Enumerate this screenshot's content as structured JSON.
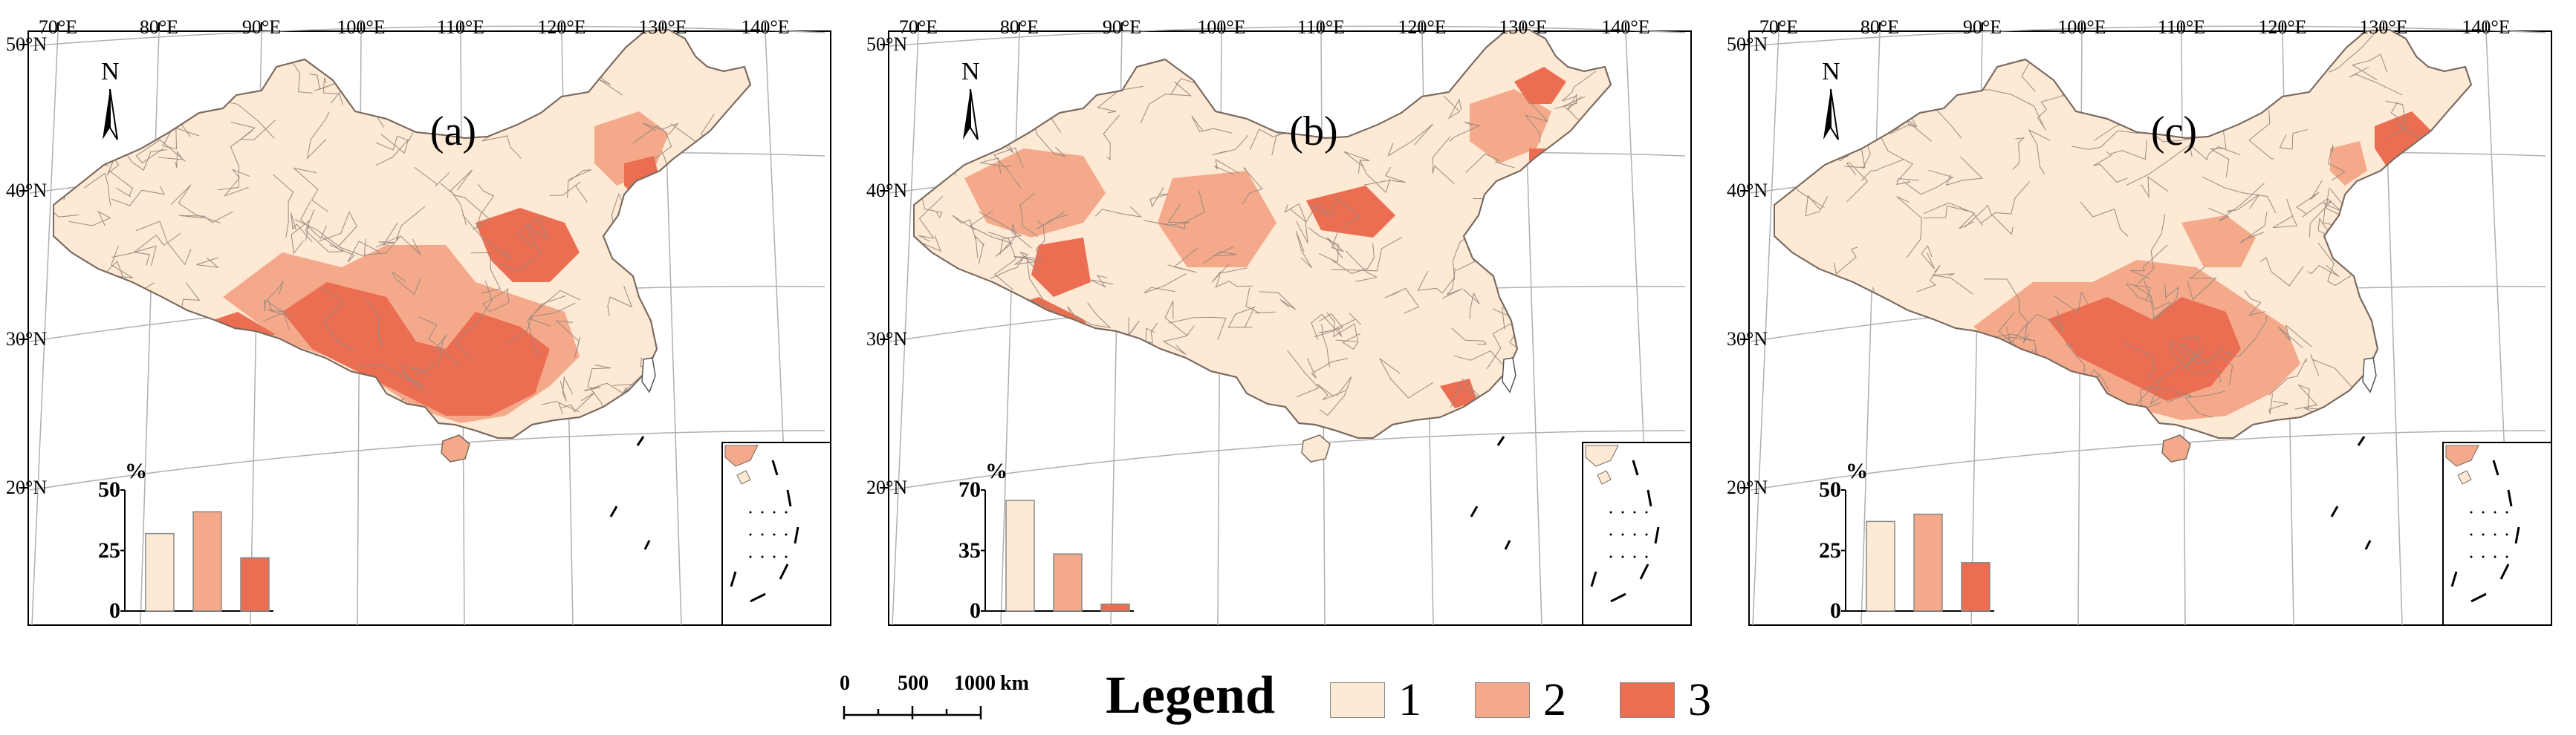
{
  "colors": {
    "class_1": "#fde9d4",
    "class_2": "#f4a98a",
    "class_3": "#ec6e52",
    "border": "#9a8a80",
    "grid": "#b0b0b0"
  },
  "map_labels": {
    "longitudes": [
      "70°E",
      "80°E",
      "90°E",
      "100°E",
      "110°E",
      "120°E",
      "130°E",
      "140°E"
    ],
    "latitudes": [
      "50°N",
      "40°N",
      "30°N",
      "20°N"
    ],
    "north_arrow": "N"
  },
  "panels": [
    {
      "id": "a",
      "label": "(a)",
      "chart": {
        "unit": "%",
        "yticks": [
          "50",
          "25",
          "0"
        ],
        "ymax": 50,
        "values": [
          32,
          41,
          22
        ]
      }
    },
    {
      "id": "b",
      "label": "(b)",
      "chart": {
        "unit": "%",
        "yticks": [
          "70",
          "35",
          "0"
        ],
        "ymax": 70,
        "values": [
          64,
          33,
          4
        ]
      }
    },
    {
      "id": "c",
      "label": "(c)",
      "chart": {
        "unit": "%",
        "yticks": [
          "50",
          "25",
          "0"
        ],
        "ymax": 50,
        "values": [
          37,
          40,
          20
        ]
      }
    }
  ],
  "scale_bar": {
    "labels": [
      "0",
      "500",
      "1000"
    ],
    "unit": "km"
  },
  "legend": {
    "title": "Legend",
    "items": [
      {
        "label": "1",
        "color": "#fde9d4"
      },
      {
        "label": "2",
        "color": "#f4a98a"
      },
      {
        "label": "3",
        "color": "#ec6e52"
      }
    ]
  },
  "chart_data": [
    {
      "type": "bar",
      "title": "",
      "categories": [
        "1",
        "2",
        "3"
      ],
      "values": [
        32,
        41,
        22
      ],
      "ylabel": "%",
      "ylim": [
        0,
        50
      ]
    },
    {
      "type": "bar",
      "title": "",
      "categories": [
        "1",
        "2",
        "3"
      ],
      "values": [
        64,
        33,
        4
      ],
      "ylabel": "%",
      "ylim": [
        0,
        70
      ]
    },
    {
      "type": "bar",
      "title": "",
      "categories": [
        "1",
        "2",
        "3"
      ],
      "values": [
        37,
        40,
        20
      ],
      "ylabel": "%",
      "ylim": [
        0,
        50
      ]
    }
  ]
}
